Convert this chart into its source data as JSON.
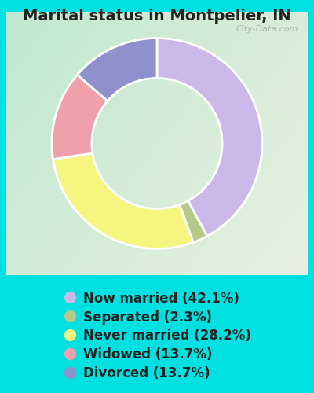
{
  "title": "Marital status in Montpelier, IN",
  "slices": [
    {
      "label": "Now married (42.1%)",
      "value": 42.1,
      "color": "#c9b8e8"
    },
    {
      "label": "Separated (2.3%)",
      "value": 2.3,
      "color": "#b5c98a"
    },
    {
      "label": "Never married (28.2%)",
      "value": 28.2,
      "color": "#f5f580"
    },
    {
      "label": "Widowed (13.7%)",
      "value": 13.7,
      "color": "#f0a0aa"
    },
    {
      "label": "Divorced (13.7%)",
      "value": 13.7,
      "color": "#9090cc"
    }
  ],
  "background_color": "#00e0e0",
  "chart_bg_color": "#d8ede0",
  "watermark": "City-Data.com",
  "title_fontsize": 14,
  "legend_fontsize": 12,
  "donut_width": 0.38,
  "title_color": "#222222",
  "legend_text_color": "#222222"
}
